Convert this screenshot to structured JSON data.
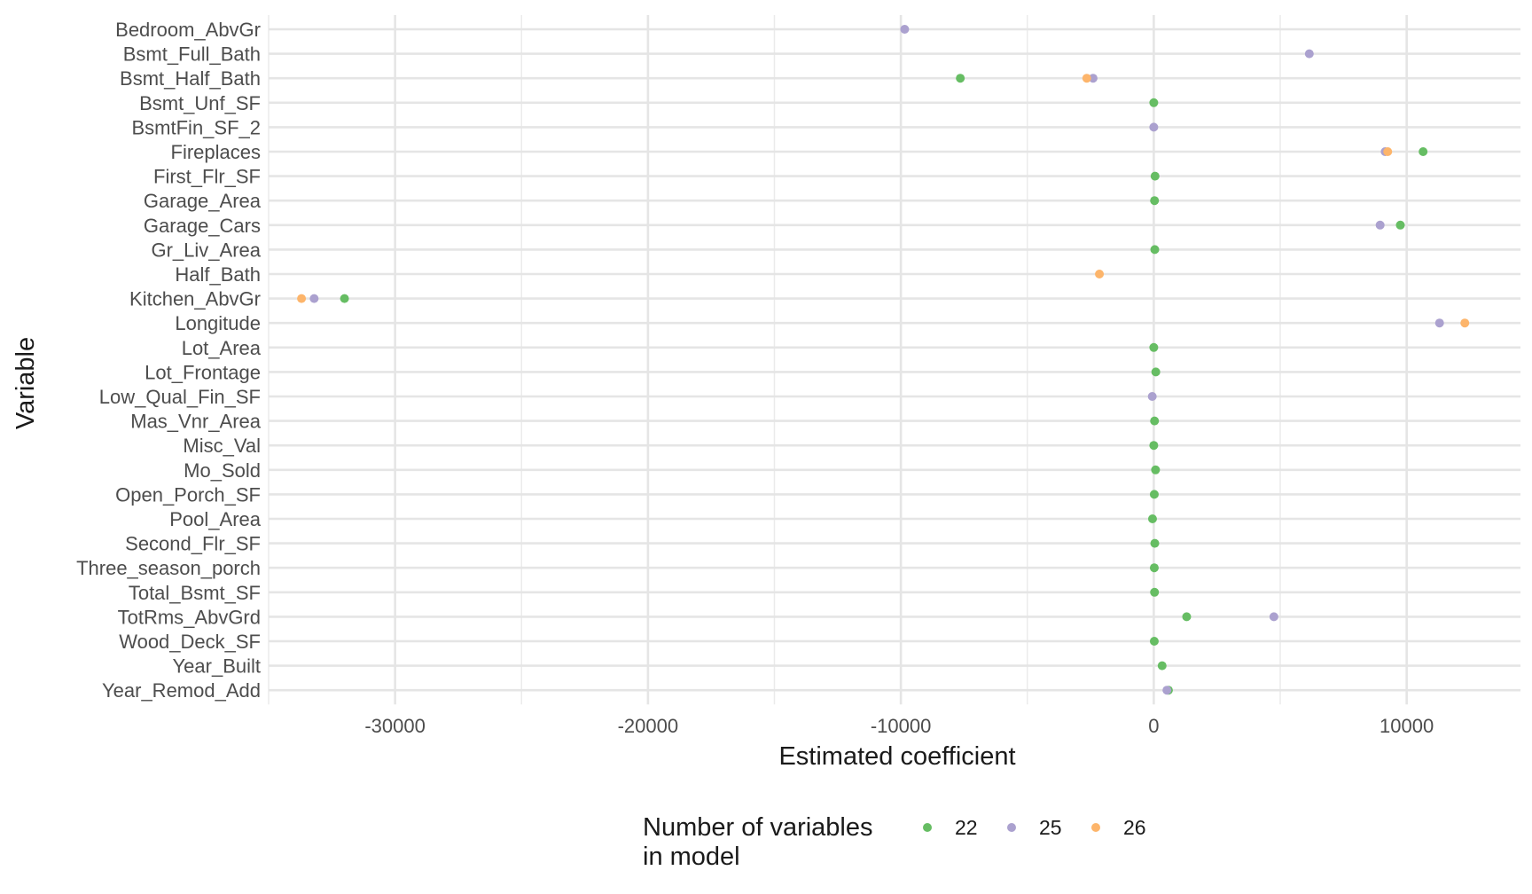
{
  "chart_data": {
    "type": "scatter",
    "xlabel": "Estimated coefficient",
    "ylabel": "Variable",
    "xlim": [
      -35000,
      14500
    ],
    "x_ticks": [
      -30000,
      -20000,
      -10000,
      0,
      10000
    ],
    "x_tick_labels": [
      "-30000",
      "-20000",
      "-10000",
      "0",
      "10000"
    ],
    "grid": true,
    "legend": {
      "title_lines": [
        "Number of variables",
        "in model"
      ],
      "position": "bottom"
    },
    "categories": [
      "Bedroom_AbvGr",
      "Bsmt_Full_Bath",
      "Bsmt_Half_Bath",
      "Bsmt_Unf_SF",
      "BsmtFin_SF_2",
      "Fireplaces",
      "First_Flr_SF",
      "Garage_Area",
      "Garage_Cars",
      "Gr_Liv_Area",
      "Half_Bath",
      "Kitchen_AbvGr",
      "Longitude",
      "Lot_Area",
      "Lot_Frontage",
      "Low_Qual_Fin_SF",
      "Mas_Vnr_Area",
      "Misc_Val",
      "Mo_Sold",
      "Open_Porch_SF",
      "Pool_Area",
      "Second_Flr_SF",
      "Three_season_porch",
      "Total_Bsmt_SF",
      "TotRms_AbvGrd",
      "Wood_Deck_SF",
      "Year_Built",
      "Year_Remod_Add"
    ],
    "series": [
      {
        "name": "22",
        "color": "#66BD63",
        "points": [
          {
            "variable": "Bsmt_Half_Bath",
            "value": -7650
          },
          {
            "variable": "Bsmt_Unf_SF",
            "value": 0
          },
          {
            "variable": "Fireplaces",
            "value": 10650
          },
          {
            "variable": "First_Flr_SF",
            "value": 50
          },
          {
            "variable": "Garage_Area",
            "value": 30
          },
          {
            "variable": "Garage_Cars",
            "value": 9750
          },
          {
            "variable": "Gr_Liv_Area",
            "value": 40
          },
          {
            "variable": "Kitchen_AbvGr",
            "value": -32000
          },
          {
            "variable": "Lot_Area",
            "value": 0
          },
          {
            "variable": "Lot_Frontage",
            "value": 80
          },
          {
            "variable": "Mas_Vnr_Area",
            "value": 30
          },
          {
            "variable": "Misc_Val",
            "value": 0
          },
          {
            "variable": "Mo_Sold",
            "value": 70
          },
          {
            "variable": "Open_Porch_SF",
            "value": 20
          },
          {
            "variable": "Pool_Area",
            "value": -50
          },
          {
            "variable": "Second_Flr_SF",
            "value": 40
          },
          {
            "variable": "Three_season_porch",
            "value": 20
          },
          {
            "variable": "Total_Bsmt_SF",
            "value": 30
          },
          {
            "variable": "TotRms_AbvGrd",
            "value": 1300
          },
          {
            "variable": "Wood_Deck_SF",
            "value": 20
          },
          {
            "variable": "Year_Built",
            "value": 330
          },
          {
            "variable": "Year_Remod_Add",
            "value": 580
          }
        ]
      },
      {
        "name": "25",
        "color": "#ABA1CF",
        "points": [
          {
            "variable": "Bedroom_AbvGr",
            "value": -9850
          },
          {
            "variable": "Bsmt_Full_Bath",
            "value": 6150
          },
          {
            "variable": "Bsmt_Half_Bath",
            "value": -2400
          },
          {
            "variable": "BsmtFin_SF_2",
            "value": 0
          },
          {
            "variable": "Fireplaces",
            "value": 9150
          },
          {
            "variable": "Garage_Cars",
            "value": 8950
          },
          {
            "variable": "Kitchen_AbvGr",
            "value": -33200
          },
          {
            "variable": "Longitude",
            "value": 11300
          },
          {
            "variable": "Low_Qual_Fin_SF",
            "value": -60
          },
          {
            "variable": "TotRms_AbvGrd",
            "value": 4750
          },
          {
            "variable": "Year_Remod_Add",
            "value": 520
          }
        ]
      },
      {
        "name": "26",
        "color": "#FDB56B",
        "points": [
          {
            "variable": "Bsmt_Half_Bath",
            "value": -2650
          },
          {
            "variable": "Fireplaces",
            "value": 9250
          },
          {
            "variable": "Half_Bath",
            "value": -2150
          },
          {
            "variable": "Kitchen_AbvGr",
            "value": -33700
          },
          {
            "variable": "Longitude",
            "value": 12300
          }
        ]
      }
    ]
  }
}
